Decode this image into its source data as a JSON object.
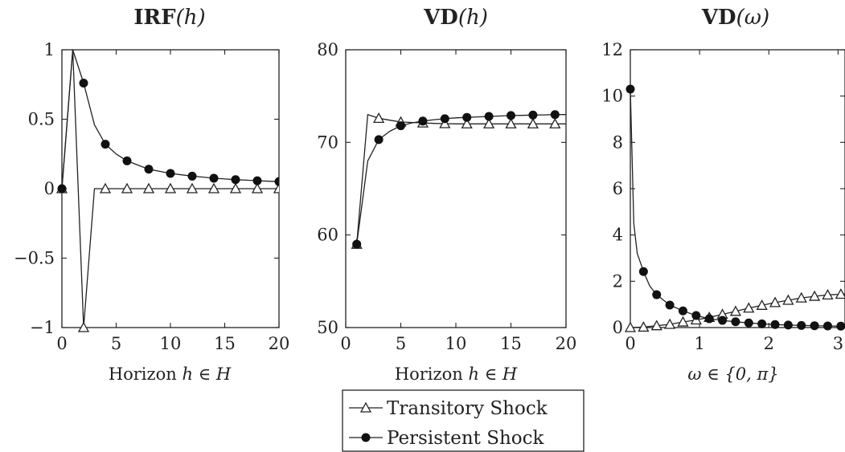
{
  "legend": {
    "entries": [
      {
        "label": "Transitory Shock",
        "marker": "triangle-open"
      },
      {
        "label": "Persistent Shock",
        "marker": "circle-filled"
      }
    ]
  },
  "chart_data": [
    {
      "type": "line",
      "title_main": "IRF",
      "title_arg": "(h)",
      "xlabel_main": "Horizon ",
      "xlabel_math": "h ∈ H",
      "xlim": [
        0,
        20
      ],
      "ylim": [
        -1,
        1
      ],
      "xticks": [
        0,
        5,
        10,
        15,
        20
      ],
      "xtick_labels": [
        "0",
        "5",
        "10",
        "15",
        "20"
      ],
      "yticks": [
        -1,
        -0.5,
        0,
        0.5,
        1
      ],
      "ytick_labels": [
        "−1",
        "−0.5",
        "0",
        "0.5",
        "1"
      ],
      "series": [
        {
          "name": "Transitory Shock",
          "marker": "triangle-open",
          "line": [
            [
              0,
              0
            ],
            [
              1,
              1
            ],
            [
              2,
              -1
            ],
            [
              3,
              0
            ],
            [
              4,
              0
            ],
            [
              5,
              0
            ],
            [
              6,
              0
            ],
            [
              7,
              0
            ],
            [
              8,
              0
            ],
            [
              9,
              0
            ],
            [
              10,
              0
            ],
            [
              11,
              0
            ],
            [
              12,
              0
            ],
            [
              13,
              0
            ],
            [
              14,
              0
            ],
            [
              15,
              0
            ],
            [
              16,
              0
            ],
            [
              17,
              0
            ],
            [
              18,
              0
            ],
            [
              19,
              0
            ],
            [
              20,
              0
            ]
          ],
          "markers": [
            [
              0,
              0
            ],
            [
              2,
              -1
            ],
            [
              4,
              0
            ],
            [
              6,
              0
            ],
            [
              8,
              0
            ],
            [
              10,
              0
            ],
            [
              12,
              0
            ],
            [
              14,
              0
            ],
            [
              16,
              0
            ],
            [
              18,
              0
            ],
            [
              20,
              0
            ]
          ]
        },
        {
          "name": "Persistent Shock",
          "marker": "circle-filled",
          "line": [
            [
              0,
              0
            ],
            [
              1,
              1
            ],
            [
              2,
              0.76
            ],
            [
              3,
              0.46
            ],
            [
              4,
              0.32
            ],
            [
              5,
              0.25
            ],
            [
              6,
              0.2
            ],
            [
              7,
              0.17
            ],
            [
              8,
              0.14
            ],
            [
              9,
              0.125
            ],
            [
              10,
              0.11
            ],
            [
              11,
              0.1
            ],
            [
              12,
              0.09
            ],
            [
              13,
              0.083
            ],
            [
              14,
              0.075
            ],
            [
              15,
              0.07
            ],
            [
              16,
              0.065
            ],
            [
              17,
              0.061
            ],
            [
              18,
              0.057
            ],
            [
              19,
              0.054
            ],
            [
              20,
              0.051
            ]
          ],
          "markers": [
            [
              0,
              0
            ],
            [
              2,
              0.76
            ],
            [
              4,
              0.32
            ],
            [
              6,
              0.2
            ],
            [
              8,
              0.14
            ],
            [
              10,
              0.11
            ],
            [
              12,
              0.09
            ],
            [
              14,
              0.075
            ],
            [
              16,
              0.065
            ],
            [
              18,
              0.057
            ],
            [
              20,
              0.051
            ]
          ]
        }
      ]
    },
    {
      "type": "line",
      "title_main": "VD",
      "title_arg": "(h)",
      "xlabel_main": "Horizon ",
      "xlabel_math": "h ∈ H",
      "xlim": [
        0,
        20
      ],
      "ylim": [
        50,
        80
      ],
      "xticks": [
        0,
        5,
        10,
        15,
        20
      ],
      "xtick_labels": [
        "0",
        "5",
        "10",
        "15",
        "20"
      ],
      "yticks": [
        50,
        60,
        70,
        80
      ],
      "ytick_labels": [
        "50",
        "60",
        "70",
        "80"
      ],
      "series": [
        {
          "name": "Transitory Shock",
          "marker": "triangle-open",
          "line": [
            [
              1,
              59
            ],
            [
              2,
              73
            ],
            [
              3,
              72.6
            ],
            [
              4,
              72.4
            ],
            [
              5,
              72.2
            ],
            [
              6,
              72.15
            ],
            [
              7,
              72.1
            ],
            [
              8,
              72.05
            ],
            [
              9,
              72.02
            ],
            [
              10,
              72
            ],
            [
              11,
              72
            ],
            [
              12,
              72
            ],
            [
              13,
              72
            ],
            [
              14,
              72
            ],
            [
              15,
              72
            ],
            [
              16,
              72
            ],
            [
              17,
              72
            ],
            [
              18,
              72
            ],
            [
              19,
              72
            ],
            [
              20,
              72
            ]
          ],
          "markers": [
            [
              1,
              59
            ],
            [
              3,
              72.6
            ],
            [
              5,
              72.2
            ],
            [
              7,
              72.1
            ],
            [
              9,
              72.02
            ],
            [
              11,
              72
            ],
            [
              13,
              72
            ],
            [
              15,
              72
            ],
            [
              17,
              72
            ],
            [
              19,
              72
            ]
          ]
        },
        {
          "name": "Persistent Shock",
          "marker": "circle-filled",
          "line": [
            [
              1,
              59
            ],
            [
              2,
              68
            ],
            [
              3,
              70.3
            ],
            [
              4,
              71.2
            ],
            [
              5,
              71.8
            ],
            [
              6,
              72.1
            ],
            [
              7,
              72.3
            ],
            [
              8,
              72.45
            ],
            [
              9,
              72.55
            ],
            [
              10,
              72.65
            ],
            [
              11,
              72.7
            ],
            [
              12,
              72.75
            ],
            [
              13,
              72.8
            ],
            [
              14,
              72.85
            ],
            [
              15,
              72.9
            ],
            [
              16,
              72.92
            ],
            [
              17,
              72.95
            ],
            [
              18,
              72.97
            ],
            [
              19,
              73
            ],
            [
              20,
              73
            ]
          ],
          "markers": [
            [
              1,
              59
            ],
            [
              3,
              70.3
            ],
            [
              5,
              71.8
            ],
            [
              7,
              72.3
            ],
            [
              9,
              72.55
            ],
            [
              11,
              72.7
            ],
            [
              13,
              72.8
            ],
            [
              15,
              72.9
            ],
            [
              17,
              72.95
            ],
            [
              19,
              73
            ]
          ]
        }
      ]
    },
    {
      "type": "line",
      "title_main": "VD",
      "title_arg": "(ω)",
      "xlabel_main": "",
      "xlabel_math": "ω ∈ {0, π}",
      "xlim": [
        0,
        3.1
      ],
      "ylim": [
        0,
        12
      ],
      "xticks": [
        0,
        1,
        2,
        3
      ],
      "xtick_labels": [
        "0",
        "1",
        "2",
        "3"
      ],
      "yticks": [
        0,
        2,
        4,
        6,
        8,
        10,
        12
      ],
      "ytick_labels": [
        "0",
        "2",
        "4",
        "6",
        "8",
        "10",
        "12"
      ],
      "series": [
        {
          "name": "Transitory Shock",
          "marker": "triangle-open",
          "line": [
            [
              0,
              0
            ],
            [
              0.19,
              0.02
            ],
            [
              0.38,
              0.08
            ],
            [
              0.57,
              0.14
            ],
            [
              0.76,
              0.24
            ],
            [
              0.95,
              0.33
            ],
            [
              1.14,
              0.44
            ],
            [
              1.33,
              0.57
            ],
            [
              1.52,
              0.7
            ],
            [
              1.71,
              0.84
            ],
            [
              1.9,
              0.96
            ],
            [
              2.09,
              1.08
            ],
            [
              2.28,
              1.18
            ],
            [
              2.47,
              1.28
            ],
            [
              2.66,
              1.35
            ],
            [
              2.85,
              1.41
            ],
            [
              3.04,
              1.44
            ],
            [
              3.1,
              1.45
            ]
          ],
          "markers": [
            [
              0,
              0
            ],
            [
              0.19,
              0.02
            ],
            [
              0.38,
              0.08
            ],
            [
              0.57,
              0.14
            ],
            [
              0.76,
              0.24
            ],
            [
              0.95,
              0.33
            ],
            [
              1.14,
              0.44
            ],
            [
              1.33,
              0.57
            ],
            [
              1.52,
              0.7
            ],
            [
              1.71,
              0.84
            ],
            [
              1.9,
              0.96
            ],
            [
              2.09,
              1.08
            ],
            [
              2.28,
              1.18
            ],
            [
              2.47,
              1.28
            ],
            [
              2.66,
              1.35
            ],
            [
              2.85,
              1.41
            ],
            [
              3.04,
              1.44
            ]
          ]
        },
        {
          "name": "Persistent Shock",
          "marker": "circle-filled",
          "line": [
            [
              0,
              10.3
            ],
            [
              0.05,
              4.5
            ],
            [
              0.1,
              3.2
            ],
            [
              0.19,
              2.42
            ],
            [
              0.28,
              1.8
            ],
            [
              0.38,
              1.42
            ],
            [
              0.57,
              0.97
            ],
            [
              0.76,
              0.72
            ],
            [
              0.95,
              0.52
            ],
            [
              1.14,
              0.38
            ],
            [
              1.33,
              0.31
            ],
            [
              1.52,
              0.25
            ],
            [
              1.71,
              0.2
            ],
            [
              1.9,
              0.16
            ],
            [
              2.09,
              0.13
            ],
            [
              2.28,
              0.11
            ],
            [
              2.47,
              0.09
            ],
            [
              2.66,
              0.08
            ],
            [
              2.85,
              0.07
            ],
            [
              3.04,
              0.06
            ],
            [
              3.1,
              0.06
            ]
          ],
          "markers": [
            [
              0,
              10.3
            ],
            [
              0.19,
              2.42
            ],
            [
              0.38,
              1.42
            ],
            [
              0.57,
              0.97
            ],
            [
              0.76,
              0.72
            ],
            [
              0.95,
              0.52
            ],
            [
              1.14,
              0.38
            ],
            [
              1.33,
              0.31
            ],
            [
              1.52,
              0.25
            ],
            [
              1.71,
              0.2
            ],
            [
              1.9,
              0.16
            ],
            [
              2.09,
              0.13
            ],
            [
              2.28,
              0.11
            ],
            [
              2.47,
              0.09
            ],
            [
              2.66,
              0.08
            ],
            [
              2.85,
              0.07
            ],
            [
              3.04,
              0.06
            ]
          ]
        }
      ]
    }
  ]
}
